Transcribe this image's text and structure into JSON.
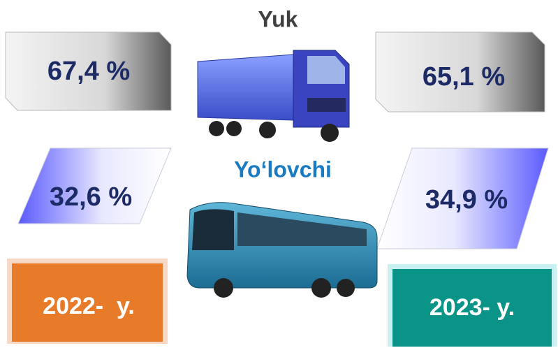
{
  "title": "Yuk",
  "subtitle": "Yo‘lovchi",
  "cargo": {
    "year_2022": "67,4 %",
    "year_2023": "65,1 %"
  },
  "passenger": {
    "year_2022": "32,6 %",
    "year_2023": "34,9 %"
  },
  "years": {
    "left": "2022-  y.",
    "right": "2023- y."
  }
}
